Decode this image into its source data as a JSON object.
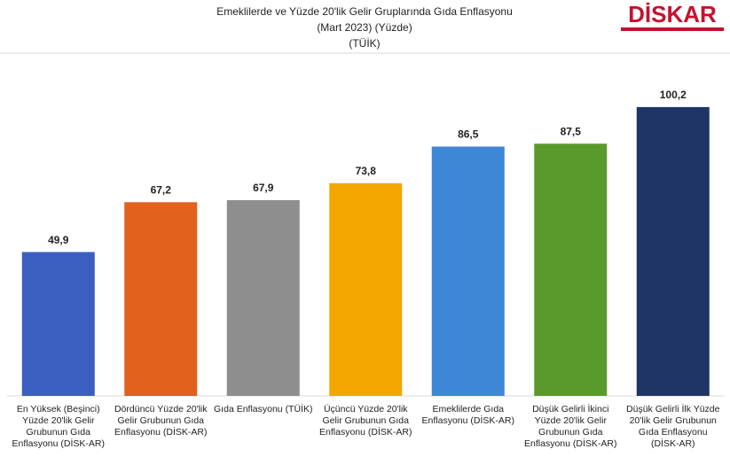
{
  "chart_data": {
    "type": "bar",
    "title": [
      "Emeklilerde ve Yüzde 20'lik Gelir Gruplarında Gıda Enflasyonu",
      "(Mart 2023) (Yüzde)",
      "(TÜİK)"
    ],
    "logo": "DİSKAR",
    "categories": [
      "En Yüksek (Beşinci) Yüzde 20'lik Gelir Grubunun Gıda Enflasyonu (DİSK-AR)",
      "Dördüncü Yüzde 20'lik Gelir Grubunun Gıda Enflasyonu (DİSK-AR)",
      "Gıda Enflasyonu (TÜİK)",
      "Üçüncü Yüzde 20'lik Gelir Grubunun Gıda Enflasyonu (DİSK-AR)",
      "Emeklilerde Gıda Enflasyonu (DİSK-AR)",
      "Düşük Gelirli İkinci Yüzde 20'lik Gelir Grubunun Gıda Enflasyonu (DİSK-AR)",
      "Düşük Gelirli İlk Yüzde 20'lik Gelir Grubunun Gıda Enflasyonu (DİSK-AR)"
    ],
    "values": [
      49.9,
      67.2,
      67.9,
      73.8,
      86.5,
      87.5,
      100.2
    ],
    "value_labels": [
      "49,9",
      "67,2",
      "67,9",
      "73,8",
      "86,5",
      "87,5",
      "100,2"
    ],
    "colors": [
      "#3a5fc0",
      "#e2611c",
      "#8e8e8e",
      "#f3a700",
      "#3e86d6",
      "#5a9a2c",
      "#1f3566"
    ],
    "ylim": [
      0,
      110
    ]
  }
}
